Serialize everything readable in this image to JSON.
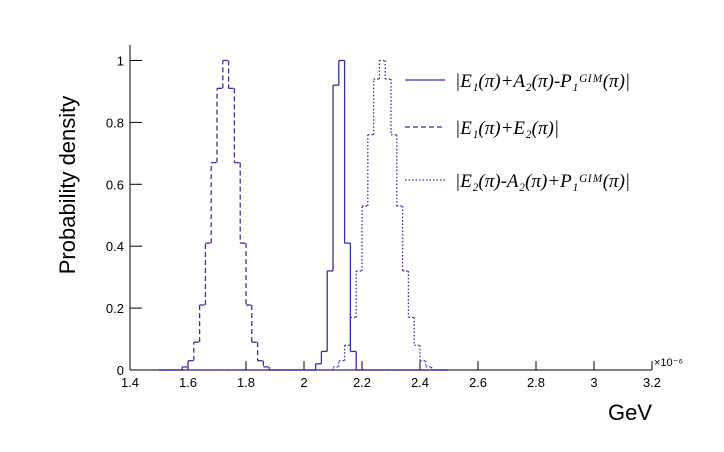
{
  "chart_data": {
    "type": "histogram",
    "x_label": "GeV",
    "y_label": "Probability density",
    "x_multiplier": "×10⁻⁶",
    "xlim": [
      1.4,
      3.2
    ],
    "ylim": [
      0,
      1.05
    ],
    "xticks": [
      1.4,
      1.6,
      1.8,
      2,
      2.2,
      2.4,
      2.6,
      2.8,
      3,
      3.2
    ],
    "yticks": [
      0,
      0.2,
      0.4,
      0.6,
      0.8,
      1
    ],
    "bins": [
      1.5,
      1.52,
      1.54,
      1.56,
      1.58,
      1.6,
      1.62,
      1.64,
      1.66,
      1.68,
      1.7,
      1.72,
      1.74,
      1.76,
      1.78,
      1.8,
      1.82,
      1.84,
      1.86,
      1.88,
      1.9,
      1.92,
      1.94,
      1.96,
      1.98,
      2,
      2.02,
      2.04,
      2.06,
      2.08,
      2.1,
      2.12,
      2.14,
      2.16,
      2.18,
      2.2,
      2.22,
      2.24,
      2.26,
      2.28,
      2.3,
      2.32,
      2.34,
      2.36,
      2.38,
      2.4,
      2.42,
      2.44,
      2.46,
      2.48,
      2.5
    ],
    "series": [
      {
        "name": "|E₁(π)+A₂(π)-P₁ᴳᴵᴹ(π)|",
        "color": "#333399",
        "dash": "solid",
        "values": [
          0,
          0,
          0,
          0,
          0,
          0,
          0,
          0,
          0,
          0,
          0,
          0,
          0,
          0,
          0,
          0,
          0,
          0,
          0,
          0,
          0,
          0,
          0,
          0,
          0,
          0,
          0,
          0.02,
          0.06,
          0.32,
          0.92,
          1,
          0.41,
          0.06,
          0,
          0,
          0,
          0,
          0,
          0,
          0,
          0,
          0,
          0,
          0,
          0,
          0,
          0,
          0,
          0
        ]
      },
      {
        "name": "|E₁(π)+E₂(π)|",
        "color": "#333399",
        "dash": "dashed",
        "values": [
          0,
          0,
          0,
          0,
          0.01,
          0.03,
          0.09,
          0.21,
          0.41,
          0.67,
          0.91,
          1,
          0.91,
          0.67,
          0.41,
          0.21,
          0.09,
          0.03,
          0.01,
          0,
          0,
          0,
          0,
          0,
          0,
          0,
          0,
          0,
          0,
          0,
          0,
          0,
          0,
          0,
          0,
          0,
          0,
          0,
          0,
          0,
          0,
          0,
          0,
          0,
          0,
          0,
          0,
          0,
          0,
          0
        ]
      },
      {
        "name": "|E₂(π)-A₂(π)+P₁ᴳᴵᴹ(π)|",
        "color": "#333399",
        "dash": "dotted",
        "values": [
          0,
          0,
          0,
          0,
          0,
          0,
          0,
          0,
          0,
          0,
          0,
          0,
          0,
          0,
          0,
          0,
          0,
          0,
          0,
          0,
          0,
          0,
          0,
          0,
          0,
          0,
          0,
          0,
          0,
          0,
          0.01,
          0.03,
          0.08,
          0.17,
          0.32,
          0.53,
          0.76,
          0.94,
          1,
          0.94,
          0.76,
          0.53,
          0.32,
          0.17,
          0.08,
          0.03,
          0.01,
          0,
          0,
          0
        ]
      }
    ]
  }
}
